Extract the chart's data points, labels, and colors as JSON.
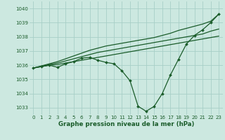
{
  "background_color": "#cce8e0",
  "grid_color": "#a8cfc7",
  "line_color": "#1a5c2a",
  "xlabel": "Graphe pression niveau de la mer (hPa)",
  "ylim": [
    1032.5,
    1040.5
  ],
  "xlim": [
    -0.5,
    23.5
  ],
  "yticks": [
    1033,
    1034,
    1035,
    1036,
    1037,
    1038,
    1039,
    1040
  ],
  "xticks": [
    0,
    1,
    2,
    3,
    4,
    5,
    6,
    7,
    8,
    9,
    10,
    11,
    12,
    13,
    14,
    15,
    16,
    17,
    18,
    19,
    20,
    21,
    22,
    23
  ],
  "series": [
    {
      "x": [
        0,
        1,
        2,
        3,
        4,
        5,
        6,
        7,
        8,
        9,
        10,
        11,
        12,
        13,
        14,
        15,
        16,
        17,
        18,
        19,
        20,
        21,
        22,
        23
      ],
      "y": [
        1035.8,
        1035.9,
        1036.0,
        1035.85,
        1036.1,
        1036.25,
        1036.5,
        1036.55,
        1036.35,
        1036.2,
        1036.1,
        1035.6,
        1034.9,
        1033.1,
        1032.75,
        1033.1,
        1034.0,
        1035.3,
        1036.4,
        1037.5,
        1038.1,
        1038.5,
        1039.0,
        1039.6
      ],
      "marker": true
    },
    {
      "x": [
        0,
        1,
        2,
        3,
        4,
        5,
        6,
        7,
        8,
        9,
        10,
        11,
        12,
        13,
        14,
        15,
        16,
        17,
        18,
        19,
        20,
        21,
        22,
        23
      ],
      "y": [
        1035.8,
        1035.9,
        1036.0,
        1036.05,
        1036.15,
        1036.25,
        1036.35,
        1036.45,
        1036.55,
        1036.65,
        1036.75,
        1036.85,
        1036.95,
        1037.05,
        1037.15,
        1037.25,
        1037.35,
        1037.45,
        1037.55,
        1037.65,
        1037.75,
        1037.85,
        1037.95,
        1038.05
      ],
      "marker": false
    },
    {
      "x": [
        0,
        1,
        2,
        3,
        4,
        5,
        6,
        7,
        8,
        9,
        10,
        11,
        12,
        13,
        14,
        15,
        16,
        17,
        18,
        19,
        20,
        21,
        22,
        23
      ],
      "y": [
        1035.8,
        1035.92,
        1036.05,
        1036.15,
        1036.3,
        1036.45,
        1036.6,
        1036.75,
        1036.9,
        1037.0,
        1037.1,
        1037.2,
        1037.3,
        1037.4,
        1037.5,
        1037.6,
        1037.7,
        1037.8,
        1037.9,
        1038.0,
        1038.1,
        1038.2,
        1038.4,
        1038.55
      ],
      "marker": false
    },
    {
      "x": [
        0,
        1,
        2,
        3,
        4,
        5,
        6,
        7,
        8,
        9,
        10,
        11,
        12,
        13,
        14,
        15,
        16,
        17,
        18,
        19,
        20,
        21,
        22,
        23
      ],
      "y": [
        1035.8,
        1035.95,
        1036.1,
        1036.25,
        1036.45,
        1036.65,
        1036.85,
        1037.05,
        1037.2,
        1037.35,
        1037.45,
        1037.55,
        1037.65,
        1037.75,
        1037.85,
        1037.95,
        1038.1,
        1038.25,
        1038.45,
        1038.6,
        1038.75,
        1038.9,
        1039.1,
        1039.6
      ],
      "marker": false
    }
  ]
}
